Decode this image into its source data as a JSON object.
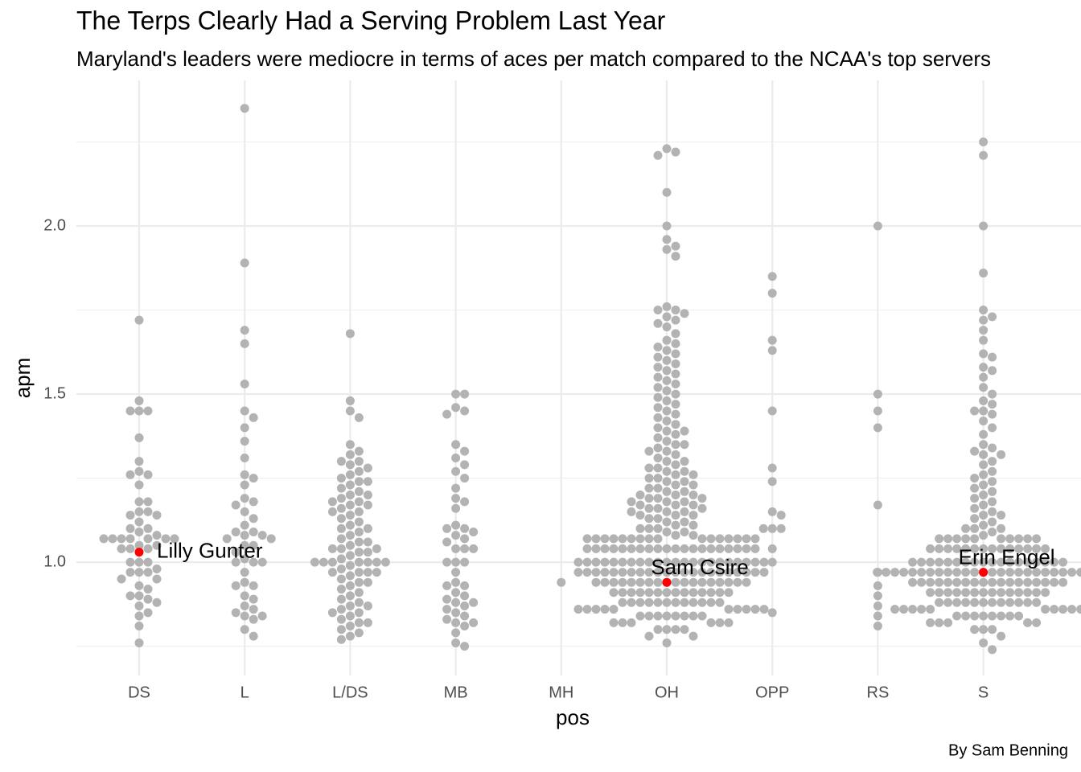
{
  "chart_data": {
    "type": "beeswarm",
    "title": "The Terps Clearly Had a Serving Problem Last Year",
    "subtitle": "Maryland's leaders were mediocre in terms of aces per match compared to the NCAA's top servers",
    "x_label": "pos",
    "y_label": "apm",
    "caption": "By Sam Benning",
    "color": "#b3b3b3",
    "highlight_color": "#ff0000",
    "grid": true,
    "ylim": [
      0.663,
      2.433
    ],
    "yticks": [
      {
        "value": 1,
        "label": "1.0"
      },
      {
        "value": 1.5,
        "label": "1.5"
      },
      {
        "value": 2,
        "label": "2.0"
      }
    ],
    "minor_yticks": [
      0.75,
      1.25,
      1.75,
      2.25
    ],
    "categories": [
      "DS",
      "L",
      "L/DS",
      "MB",
      "MH",
      "OH",
      "OPP",
      "RS",
      "S"
    ],
    "values": [
      [
        1.72,
        1.48,
        1.45,
        1.45,
        1.45,
        1.37,
        1.3,
        1.27,
        1.26,
        1.26,
        1.23,
        1.18,
        1.18,
        1.15,
        1.15,
        1.14,
        1.14,
        1.12,
        1.1,
        1.1,
        1.09,
        1.08,
        1.07,
        1.07,
        1.07,
        1.07,
        1.07,
        1.07,
        1.07,
        1.05,
        1.05,
        1.04,
        1.04,
        1.04,
        1.0,
        1.0,
        1.0,
        0.98,
        0.97,
        0.97,
        0.97,
        0.95,
        0.95,
        0.93,
        0.92,
        0.9,
        0.9,
        0.89,
        0.88,
        0.87,
        0.85,
        0.84,
        0.81,
        0.76
      ],
      [
        2.35,
        1.89,
        1.69,
        1.65,
        1.53,
        1.45,
        1.43,
        1.4,
        1.36,
        1.31,
        1.26,
        1.25,
        1.23,
        1.19,
        1.18,
        1.17,
        1.15,
        1.13,
        1.11,
        1.09,
        1.09,
        1.08,
        1.08,
        1.07,
        1.07,
        1.05,
        1.05,
        1.03,
        1.01,
        1.0,
        1.0,
        1.0,
        0.97,
        0.94,
        0.93,
        0.93,
        0.9,
        0.89,
        0.87,
        0.86,
        0.85,
        0.84,
        0.84,
        0.83,
        0.8,
        0.78
      ],
      [
        1.68,
        1.48,
        1.45,
        1.43,
        1.35,
        1.33,
        1.32,
        1.3,
        1.3,
        1.29,
        1.28,
        1.27,
        1.26,
        1.25,
        1.24,
        1.24,
        1.23,
        1.22,
        1.21,
        1.2,
        1.2,
        1.19,
        1.18,
        1.18,
        1.17,
        1.17,
        1.16,
        1.15,
        1.15,
        1.14,
        1.13,
        1.12,
        1.11,
        1.1,
        1.1,
        1.09,
        1.08,
        1.07,
        1.06,
        1.06,
        1.05,
        1.04,
        1.04,
        1.04,
        1.03,
        1.03,
        1.02,
        1.01,
        1.0,
        1.0,
        1.0,
        1.0,
        1.0,
        1.0,
        1.0,
        0.99,
        0.98,
        0.97,
        0.97,
        0.97,
        0.97,
        0.96,
        0.95,
        0.94,
        0.94,
        0.93,
        0.92,
        0.91,
        0.9,
        0.89,
        0.88,
        0.87,
        0.87,
        0.86,
        0.85,
        0.85,
        0.84,
        0.83,
        0.82,
        0.82,
        0.81,
        0.8,
        0.79,
        0.78,
        0.77
      ],
      [
        1.5,
        1.5,
        1.46,
        1.45,
        1.44,
        1.35,
        1.33,
        1.31,
        1.29,
        1.27,
        1.25,
        1.22,
        1.19,
        1.18,
        1.16,
        1.11,
        1.1,
        1.1,
        1.09,
        1.08,
        1.07,
        1.06,
        1.04,
        1.04,
        1.04,
        1.0,
        1.0,
        1.0,
        0.97,
        0.94,
        0.93,
        0.93,
        0.91,
        0.9,
        0.89,
        0.88,
        0.88,
        0.87,
        0.86,
        0.85,
        0.84,
        0.83,
        0.82,
        0.82,
        0.81,
        0.79,
        0.76,
        0.75
      ],
      [
        0.94
      ],
      [
        2.23,
        2.22,
        2.21,
        2.1,
        2.0,
        1.96,
        1.94,
        1.93,
        1.91,
        1.76,
        1.75,
        1.75,
        1.74,
        1.73,
        1.72,
        1.71,
        1.7,
        1.68,
        1.66,
        1.65,
        1.64,
        1.63,
        1.62,
        1.61,
        1.6,
        1.59,
        1.58,
        1.57,
        1.56,
        1.55,
        1.54,
        1.53,
        1.52,
        1.51,
        1.5,
        1.49,
        1.48,
        1.47,
        1.46,
        1.45,
        1.44,
        1.43,
        1.42,
        1.41,
        1.4,
        1.39,
        1.39,
        1.38,
        1.37,
        1.36,
        1.35,
        1.35,
        1.34,
        1.33,
        1.33,
        1.32,
        1.31,
        1.3,
        1.3,
        1.29,
        1.28,
        1.28,
        1.27,
        1.27,
        1.26,
        1.26,
        1.25,
        1.25,
        1.24,
        1.24,
        1.23,
        1.23,
        1.22,
        1.22,
        1.21,
        1.21,
        1.2,
        1.2,
        1.2,
        1.19,
        1.19,
        1.19,
        1.18,
        1.18,
        1.18,
        1.17,
        1.17,
        1.17,
        1.16,
        1.16,
        1.16,
        1.15,
        1.15,
        1.15,
        1.14,
        1.14,
        1.14,
        1.13,
        1.13,
        1.12,
        1.12,
        1.11,
        1.11,
        1.1,
        1.1,
        1.1,
        1.09,
        1.09,
        1.08,
        1.08,
        1.07,
        1.07,
        1.07,
        1.07,
        1.07,
        1.07,
        1.07,
        1.07,
        1.07,
        1.07,
        1.07,
        1.07,
        1.07,
        1.07,
        1.07,
        1.07,
        1.04,
        1.04,
        1.04,
        1.04,
        1.04,
        1.04,
        1.04,
        1.04,
        1.04,
        1.04,
        1.04,
        1.04,
        1.04,
        1.04,
        1.04,
        1.04,
        1.04,
        1.04,
        1.04,
        1.04,
        1.0,
        1.0,
        1.0,
        1.0,
        1.0,
        1.0,
        1.0,
        1.0,
        1.0,
        1.0,
        1.0,
        1.0,
        1.0,
        1.0,
        1.0,
        1.0,
        1.0,
        1.0,
        1.0,
        1.0,
        1.0,
        1.0,
        0.97,
        0.97,
        0.97,
        0.97,
        0.97,
        0.97,
        0.97,
        0.97,
        0.97,
        0.97,
        0.97,
        0.97,
        0.97,
        0.97,
        0.97,
        0.97,
        0.97,
        0.97,
        0.97,
        0.97,
        0.97,
        0.97,
        0.94,
        0.94,
        0.94,
        0.94,
        0.94,
        0.94,
        0.94,
        0.94,
        0.94,
        0.94,
        0.94,
        0.94,
        0.94,
        0.94,
        0.94,
        0.94,
        0.94,
        0.94,
        0.91,
        0.91,
        0.91,
        0.91,
        0.91,
        0.91,
        0.91,
        0.91,
        0.91,
        0.91,
        0.91,
        0.91,
        0.91,
        0.91,
        0.88,
        0.88,
        0.88,
        0.88,
        0.88,
        0.88,
        0.88,
        0.88,
        0.88,
        0.88,
        0.88,
        0.88,
        0.86,
        0.86,
        0.86,
        0.86,
        0.86,
        0.86,
        0.86,
        0.86,
        0.86,
        0.86,
        0.84,
        0.84,
        0.84,
        0.84,
        0.84,
        0.84,
        0.84,
        0.84,
        0.82,
        0.82,
        0.82,
        0.82,
        0.82,
        0.82,
        0.8,
        0.8,
        0.8,
        0.8,
        0.78,
        0.78,
        0.76
      ],
      [
        1.85,
        1.8,
        1.66,
        1.63,
        1.45,
        1.28,
        1.24,
        1.15,
        1.14,
        1.1,
        1.1,
        1.1,
        1.04,
        1.0,
        0.85
      ],
      [
        2.0,
        1.5,
        1.45,
        1.4,
        1.17,
        0.97,
        0.93,
        0.9,
        0.87,
        0.84,
        0.81
      ],
      [
        2.25,
        2.21,
        2.0,
        1.86,
        1.75,
        1.73,
        1.72,
        1.69,
        1.66,
        1.62,
        1.61,
        1.58,
        1.57,
        1.55,
        1.52,
        1.5,
        1.48,
        1.47,
        1.45,
        1.45,
        1.44,
        1.42,
        1.4,
        1.38,
        1.35,
        1.34,
        1.33,
        1.32,
        1.32,
        1.3,
        1.29,
        1.27,
        1.26,
        1.25,
        1.24,
        1.23,
        1.22,
        1.21,
        1.2,
        1.19,
        1.18,
        1.17,
        1.16,
        1.15,
        1.14,
        1.14,
        1.13,
        1.12,
        1.11,
        1.1,
        1.1,
        1.1,
        1.09,
        1.08,
        1.07,
        1.07,
        1.07,
        1.07,
        1.07,
        1.07,
        1.07,
        1.07,
        1.07,
        1.07,
        1.04,
        1.04,
        1.04,
        1.04,
        1.04,
        1.04,
        1.04,
        1.04,
        1.04,
        1.04,
        1.04,
        1.04,
        1.04,
        1.04,
        1.0,
        1.0,
        1.0,
        1.0,
        1.0,
        1.0,
        1.0,
        1.0,
        1.0,
        1.0,
        1.0,
        1.0,
        1.0,
        1.0,
        1.0,
        1.0,
        1.0,
        1.0,
        0.97,
        0.97,
        0.97,
        0.97,
        0.97,
        0.97,
        0.97,
        0.97,
        0.97,
        0.97,
        0.97,
        0.97,
        0.97,
        0.97,
        0.97,
        0.97,
        0.97,
        0.97,
        0.97,
        0.97,
        0.97,
        0.97,
        0.97,
        0.97,
        0.97,
        0.97,
        0.94,
        0.94,
        0.94,
        0.94,
        0.94,
        0.94,
        0.94,
        0.94,
        0.94,
        0.94,
        0.94,
        0.94,
        0.94,
        0.94,
        0.94,
        0.94,
        0.94,
        0.94,
        0.91,
        0.91,
        0.91,
        0.91,
        0.91,
        0.91,
        0.91,
        0.91,
        0.91,
        0.91,
        0.91,
        0.91,
        0.91,
        0.91,
        0.88,
        0.88,
        0.88,
        0.88,
        0.88,
        0.88,
        0.88,
        0.88,
        0.88,
        0.88,
        0.88,
        0.88,
        0.86,
        0.86,
        0.86,
        0.86,
        0.86,
        0.86,
        0.86,
        0.86,
        0.86,
        0.86,
        0.84,
        0.84,
        0.84,
        0.84,
        0.84,
        0.84,
        0.84,
        0.84,
        0.82,
        0.82,
        0.82,
        0.82,
        0.82,
        0.8,
        0.8,
        0.8,
        0.78,
        0.76,
        0.74
      ]
    ],
    "highlights": [
      {
        "label": "Lilly Gunter",
        "category": "DS",
        "value": 1.03
      },
      {
        "label": "Sam Csire",
        "category": "OH",
        "value": 0.94
      },
      {
        "label": "Erin Engel",
        "category": "S",
        "value": 0.97
      }
    ]
  }
}
